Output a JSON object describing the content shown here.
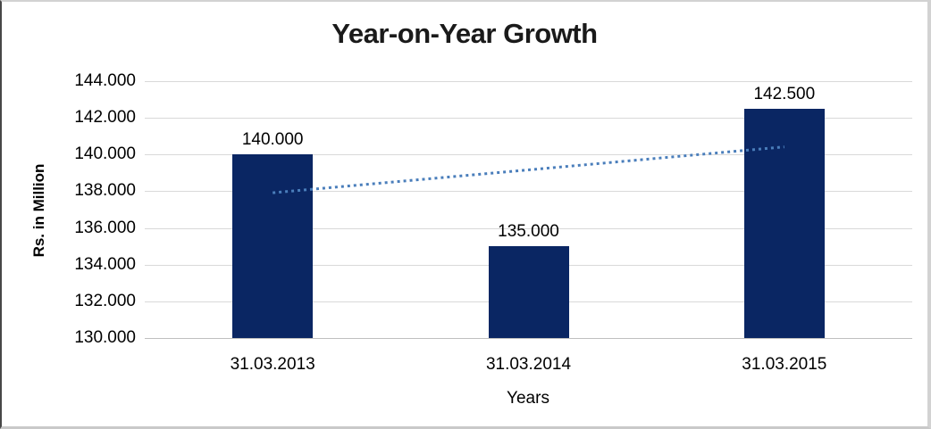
{
  "chart_data": {
    "type": "bar",
    "title": "Year-on-Year Growth",
    "xlabel": "Years",
    "ylabel": "Rs. in Million",
    "categories": [
      "31.03.2013",
      "31.03.2014",
      "31.03.2015"
    ],
    "values": [
      140.0,
      135.0,
      142.5
    ],
    "value_labels": [
      "140.000",
      "135.000",
      "142.500"
    ],
    "ylim": [
      130.0,
      144.0
    ],
    "ytick_step": 2.0,
    "ytick_labels": [
      "144.000",
      "142.000",
      "140.000",
      "138.000",
      "136.000",
      "134.000",
      "132.000",
      "130.000"
    ],
    "grid": true,
    "legend": "none",
    "trendline": {
      "type": "linear",
      "style": "dotted",
      "start_value": 137.917,
      "end_value": 140.417
    },
    "colors": {
      "bar": "#0a2663",
      "trendline": "#4a7ebb",
      "gridline": "#d9d9d9",
      "axis_line": "#bfbfbf",
      "text": "#000000",
      "title_text": "#1a1a1a"
    }
  }
}
